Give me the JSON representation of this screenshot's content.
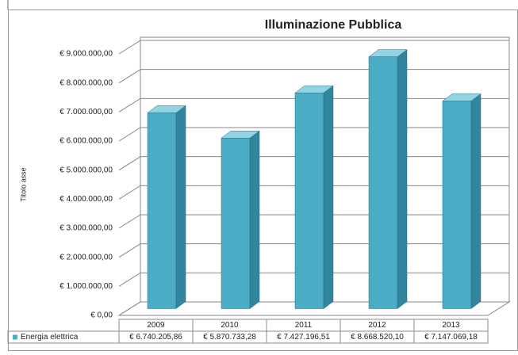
{
  "chart_data": {
    "type": "bar3d",
    "title": "Illuminazione Pubblica",
    "y_axis_label": "Titolo asse",
    "categories": [
      "2009",
      "2010",
      "2011",
      "2012",
      "2013"
    ],
    "series": [
      {
        "name": "Energia elettrica",
        "color": "#4bacc6",
        "values": [
          6740205.86,
          5870733.28,
          7427196.51,
          8668520.1,
          7147069.18
        ],
        "value_labels": [
          "€ 6.740.205,86",
          "€ 5.870.733,28",
          "€ 7.427.196,51",
          "€ 8.668.520,10",
          "€ 7.147.069,18"
        ]
      }
    ],
    "ylim": [
      0,
      9000000
    ],
    "yticks": [
      {
        "value": 0,
        "label": "€ 0,00"
      },
      {
        "value": 1000000,
        "label": "€ 1.000.000,00"
      },
      {
        "value": 2000000,
        "label": "€ 2.000.000,00"
      },
      {
        "value": 3000000,
        "label": "€ 3.000.000,00"
      },
      {
        "value": 4000000,
        "label": "€ 4.000.000,00"
      },
      {
        "value": 5000000,
        "label": "€ 5.000.000,00"
      },
      {
        "value": 6000000,
        "label": "€ 6.000.000,00"
      },
      {
        "value": 7000000,
        "label": "€ 7.000.000,00"
      },
      {
        "value": 8000000,
        "label": "€ 8.000.000,00"
      },
      {
        "value": 9000000,
        "label": "€ 9.000.000,00"
      }
    ],
    "grid": true
  }
}
